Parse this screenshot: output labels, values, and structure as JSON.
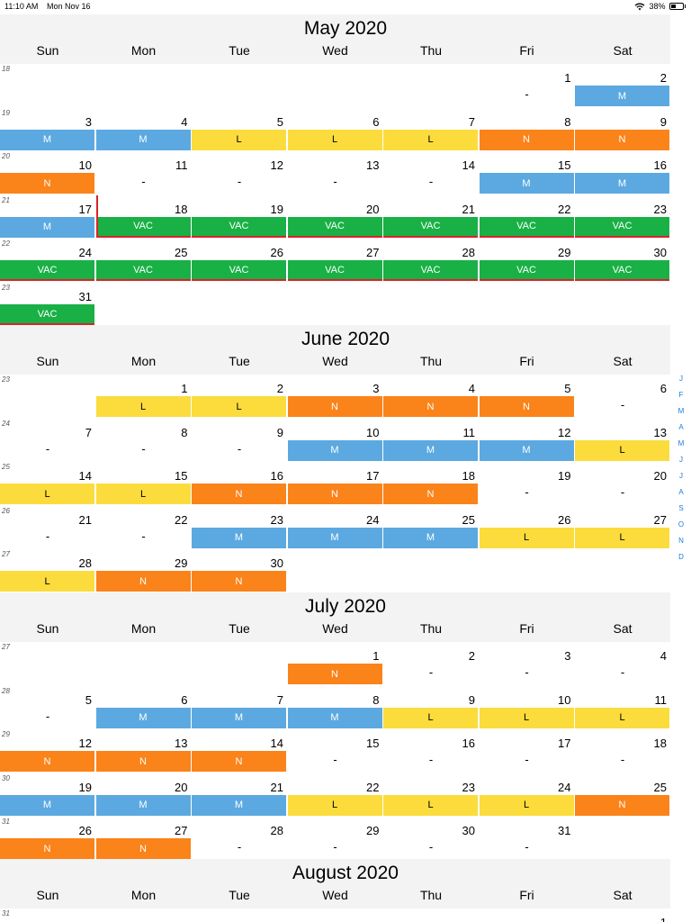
{
  "status_bar": {
    "time": "11:10 AM",
    "date": "Mon Nov 16",
    "battery": "38%",
    "wifi_icon": "wifi-icon",
    "battery_icon": "battery-icon"
  },
  "weekdays": [
    "Sun",
    "Mon",
    "Tue",
    "Wed",
    "Thu",
    "Fri",
    "Sat"
  ],
  "colors": {
    "M": "#5ba9e0",
    "L": "#fbdc3c",
    "N": "#fa831a",
    "VAC": "#19b046",
    "vac_line": "#d8242a",
    "header_bg": "#f3f3f3",
    "index_link": "#1a7bd8"
  },
  "month_index": [
    "J",
    "F",
    "M",
    "A",
    "M",
    "J",
    "J",
    "A",
    "S",
    "O",
    "N",
    "D"
  ],
  "months": [
    {
      "title": "May 2020",
      "weeks": [
        {
          "num": "18",
          "days": [
            null,
            null,
            null,
            null,
            null,
            {
              "d": "1",
              "s": "-"
            },
            {
              "d": "2",
              "s": "M"
            }
          ]
        },
        {
          "num": "19",
          "days": [
            {
              "d": "3",
              "s": "M"
            },
            {
              "d": "4",
              "s": "M"
            },
            {
              "d": "5",
              "s": "L"
            },
            {
              "d": "6",
              "s": "L"
            },
            {
              "d": "7",
              "s": "L"
            },
            {
              "d": "8",
              "s": "N"
            },
            {
              "d": "9",
              "s": "N"
            }
          ]
        },
        {
          "num": "20",
          "days": [
            {
              "d": "10",
              "s": "N"
            },
            {
              "d": "11",
              "s": "-"
            },
            {
              "d": "12",
              "s": "-"
            },
            {
              "d": "13",
              "s": "-"
            },
            {
              "d": "14",
              "s": "-"
            },
            {
              "d": "15",
              "s": "M"
            },
            {
              "d": "16",
              "s": "M"
            }
          ]
        },
        {
          "num": "21",
          "days": [
            {
              "d": "17",
              "s": "M"
            },
            {
              "d": "18",
              "s": "VAC",
              "vac_start": true
            },
            {
              "d": "19",
              "s": "VAC"
            },
            {
              "d": "20",
              "s": "VAC"
            },
            {
              "d": "21",
              "s": "VAC"
            },
            {
              "d": "22",
              "s": "VAC"
            },
            {
              "d": "23",
              "s": "VAC"
            }
          ]
        },
        {
          "num": "22",
          "days": [
            {
              "d": "24",
              "s": "VAC"
            },
            {
              "d": "25",
              "s": "VAC"
            },
            {
              "d": "26",
              "s": "VAC"
            },
            {
              "d": "27",
              "s": "VAC"
            },
            {
              "d": "28",
              "s": "VAC"
            },
            {
              "d": "29",
              "s": "VAC"
            },
            {
              "d": "30",
              "s": "VAC"
            }
          ]
        },
        {
          "num": "23",
          "days": [
            {
              "d": "31",
              "s": "VAC"
            },
            null,
            null,
            null,
            null,
            null,
            null
          ]
        }
      ]
    },
    {
      "title": "June 2020",
      "weeks": [
        {
          "num": "23",
          "days": [
            null,
            {
              "d": "1",
              "s": "L"
            },
            {
              "d": "2",
              "s": "L"
            },
            {
              "d": "3",
              "s": "N"
            },
            {
              "d": "4",
              "s": "N"
            },
            {
              "d": "5",
              "s": "N"
            },
            {
              "d": "6",
              "s": "-"
            }
          ]
        },
        {
          "num": "24",
          "days": [
            {
              "d": "7",
              "s": "-"
            },
            {
              "d": "8",
              "s": "-"
            },
            {
              "d": "9",
              "s": "-"
            },
            {
              "d": "10",
              "s": "M"
            },
            {
              "d": "11",
              "s": "M"
            },
            {
              "d": "12",
              "s": "M"
            },
            {
              "d": "13",
              "s": "L"
            }
          ]
        },
        {
          "num": "25",
          "days": [
            {
              "d": "14",
              "s": "L"
            },
            {
              "d": "15",
              "s": "L"
            },
            {
              "d": "16",
              "s": "N"
            },
            {
              "d": "17",
              "s": "N"
            },
            {
              "d": "18",
              "s": "N"
            },
            {
              "d": "19",
              "s": "-"
            },
            {
              "d": "20",
              "s": "-"
            }
          ]
        },
        {
          "num": "26",
          "days": [
            {
              "d": "21",
              "s": "-"
            },
            {
              "d": "22",
              "s": "-"
            },
            {
              "d": "23",
              "s": "M"
            },
            {
              "d": "24",
              "s": "M"
            },
            {
              "d": "25",
              "s": "M"
            },
            {
              "d": "26",
              "s": "L"
            },
            {
              "d": "27",
              "s": "L"
            }
          ]
        },
        {
          "num": "27",
          "days": [
            {
              "d": "28",
              "s": "L"
            },
            {
              "d": "29",
              "s": "N"
            },
            {
              "d": "30",
              "s": "N"
            },
            null,
            null,
            null,
            null
          ]
        }
      ]
    },
    {
      "title": "July 2020",
      "weeks": [
        {
          "num": "27",
          "days": [
            null,
            null,
            null,
            {
              "d": "1",
              "s": "N"
            },
            {
              "d": "2",
              "s": "-"
            },
            {
              "d": "3",
              "s": "-"
            },
            {
              "d": "4",
              "s": "-"
            }
          ]
        },
        {
          "num": "28",
          "days": [
            {
              "d": "5",
              "s": "-"
            },
            {
              "d": "6",
              "s": "M"
            },
            {
              "d": "7",
              "s": "M"
            },
            {
              "d": "8",
              "s": "M"
            },
            {
              "d": "9",
              "s": "L"
            },
            {
              "d": "10",
              "s": "L"
            },
            {
              "d": "11",
              "s": "L"
            }
          ]
        },
        {
          "num": "29",
          "days": [
            {
              "d": "12",
              "s": "N"
            },
            {
              "d": "13",
              "s": "N"
            },
            {
              "d": "14",
              "s": "N"
            },
            {
              "d": "15",
              "s": "-"
            },
            {
              "d": "16",
              "s": "-"
            },
            {
              "d": "17",
              "s": "-"
            },
            {
              "d": "18",
              "s": "-"
            }
          ]
        },
        {
          "num": "30",
          "days": [
            {
              "d": "19",
              "s": "M"
            },
            {
              "d": "20",
              "s": "M"
            },
            {
              "d": "21",
              "s": "M"
            },
            {
              "d": "22",
              "s": "L"
            },
            {
              "d": "23",
              "s": "L"
            },
            {
              "d": "24",
              "s": "L"
            },
            {
              "d": "25",
              "s": "N"
            }
          ]
        },
        {
          "num": "31",
          "days": [
            {
              "d": "26",
              "s": "N"
            },
            {
              "d": "27",
              "s": "N"
            },
            {
              "d": "28",
              "s": "-"
            },
            {
              "d": "29",
              "s": "-"
            },
            {
              "d": "30",
              "s": "-"
            },
            {
              "d": "31",
              "s": "-"
            },
            null
          ]
        }
      ]
    },
    {
      "title": "August 2020",
      "weeks": [
        {
          "num": "31",
          "days": [
            null,
            null,
            null,
            null,
            null,
            null,
            {
              "d": "1",
              "s": ""
            }
          ]
        }
      ]
    }
  ]
}
